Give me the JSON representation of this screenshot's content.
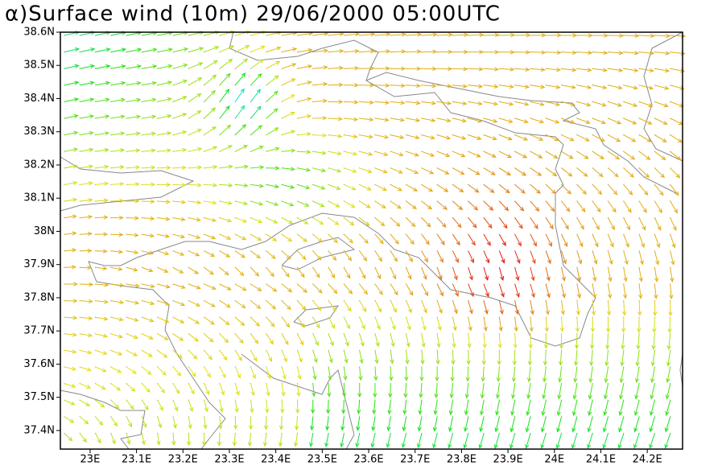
{
  "title": "α)Surface wind (10m) 29/06/2000 05:00UTC",
  "map": {
    "xlim": [
      22.936,
      24.276
    ],
    "ylim": [
      37.344,
      38.6
    ],
    "xticks": [
      {
        "value": 23,
        "label": "23E"
      },
      {
        "value": 23.1,
        "label": "23.1E"
      },
      {
        "value": 23.2,
        "label": "23.2E"
      },
      {
        "value": 23.3,
        "label": "23.3E"
      },
      {
        "value": 23.4,
        "label": "23.4E"
      },
      {
        "value": 23.5,
        "label": "23.5E"
      },
      {
        "value": 23.6,
        "label": "23.6E"
      },
      {
        "value": 23.7,
        "label": "23.7E"
      },
      {
        "value": 23.8,
        "label": "23.8E"
      },
      {
        "value": 23.9,
        "label": "23.9E"
      },
      {
        "value": 24,
        "label": "24E"
      },
      {
        "value": 24.1,
        "label": "24.1E"
      },
      {
        "value": 24.2,
        "label": "24.2E"
      }
    ],
    "yticks": [
      {
        "value": 38.6,
        "label": "38.6N"
      },
      {
        "value": 38.5,
        "label": "38.5N"
      },
      {
        "value": 38.4,
        "label": "38.4N"
      },
      {
        "value": 38.3,
        "label": "38.3N"
      },
      {
        "value": 38.2,
        "label": "38.2N"
      },
      {
        "value": 38.1,
        "label": "38.1N"
      },
      {
        "value": 38,
        "label": "38N"
      },
      {
        "value": 37.9,
        "label": "37.9N"
      },
      {
        "value": 37.8,
        "label": "37.8N"
      },
      {
        "value": 37.7,
        "label": "37.7N"
      },
      {
        "value": 37.6,
        "label": "37.6N"
      },
      {
        "value": 37.5,
        "label": "37.5N"
      },
      {
        "value": 37.4,
        "label": "37.4N"
      }
    ]
  }
}
